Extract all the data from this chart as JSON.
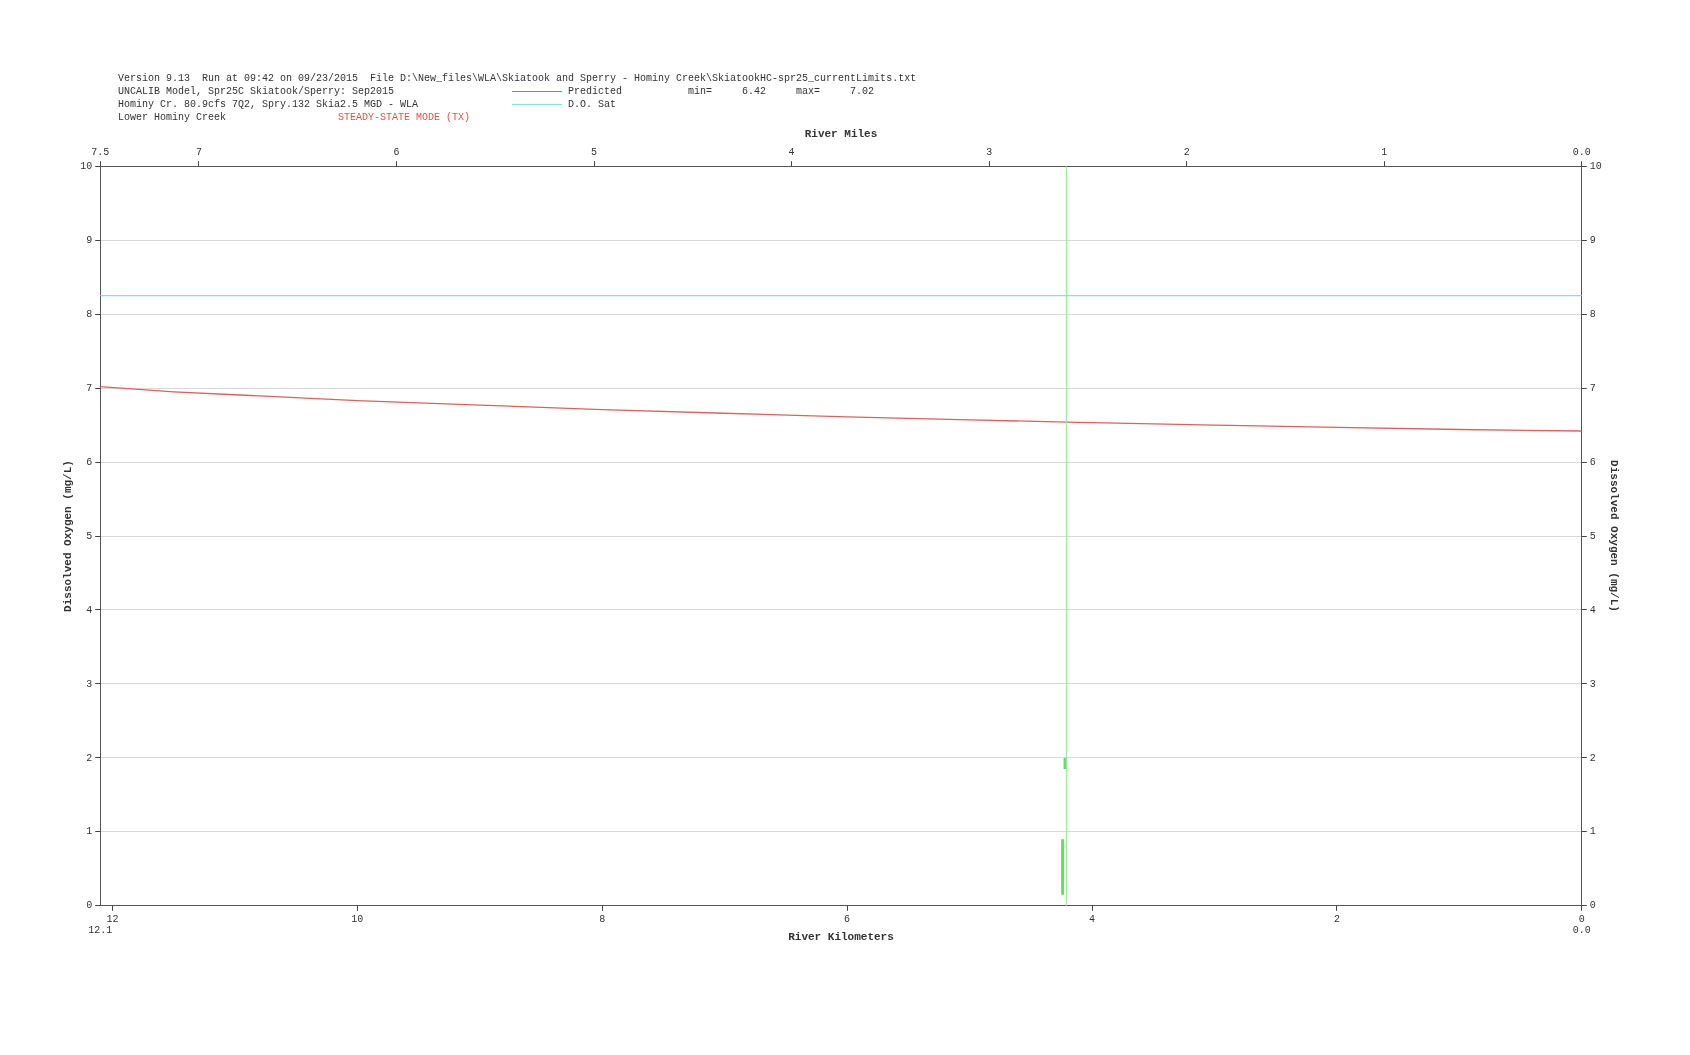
{
  "chart_data": {
    "type": "line",
    "annotations": [
      "Version 9.13  Run at 09:42 on 09/23/2015  File D:\\New_files\\WLA\\Skiatook and Sperry - Hominy Creek\\SkiatookHC-spr25_currentLimits.txt",
      "UNCALIB Model, Spr25C Skiatook/Sperry: Sep2015",
      "Hominy Cr. 80.9cfs 7Q2, Spry.132 Skia2.5 MGD - WLA",
      "Lower Hominy Creek",
      "STEADY-STATE MODE (TX)",
      "min=     6.42     max=     7.02",
      "12.1",
      "0.0"
    ],
    "xlabel": "River Kilometers",
    "x2label": "River Miles",
    "ylabel": "Dissolved Oxygen (mg/L)",
    "y2label": "Dissolved Oxygen (mg/L)",
    "xlim": [
      12.1,
      0
    ],
    "xticks": [
      12,
      10,
      8,
      6,
      4,
      2,
      0
    ],
    "x2lim": [
      7.5,
      0
    ],
    "x2ticks": [
      {
        "value": 7.5,
        "label": "7.5"
      },
      7,
      6,
      5,
      4,
      3,
      2,
      1,
      {
        "value": 0,
        "label": "0.0"
      }
    ],
    "ylim": [
      0,
      10
    ],
    "yticks": [
      0,
      1,
      2,
      3,
      4,
      5,
      6,
      7,
      8,
      9,
      10
    ],
    "y2lim": [
      0,
      10
    ],
    "y2ticks": [
      0,
      1,
      2,
      3,
      4,
      5,
      6,
      7,
      8,
      9,
      10
    ],
    "grid": "y",
    "legend": "top",
    "marker": "none",
    "line_style": "solid",
    "series": [
      {
        "name": "Predicted",
        "color": "#e06060",
        "x": [
          12.1,
          11.5,
          11,
          10,
          9,
          8,
          7,
          6,
          5,
          4.2,
          3,
          2,
          1,
          0
        ],
        "values": [
          7.02,
          6.95,
          6.91,
          6.83,
          6.77,
          6.71,
          6.66,
          6.61,
          6.57,
          6.54,
          6.5,
          6.47,
          6.44,
          6.42
        ]
      },
      {
        "name": "D.O. Sat",
        "color": "#80e0f0",
        "x": [
          12.1,
          0
        ],
        "values": [
          8.25,
          8.25
        ]
      },
      {
        "color": "#60e060",
        "x": [
          4.24,
          4.24,
          4.23,
          4.22,
          4.22
        ],
        "values": [
          0.15,
          0.9,
          null,
          1.85,
          2.0
        ]
      }
    ],
    "ref_lines": [
      {
        "axis": "x",
        "value": 4.21,
        "color": "#90e890",
        "line_style": "solid"
      }
    ]
  }
}
